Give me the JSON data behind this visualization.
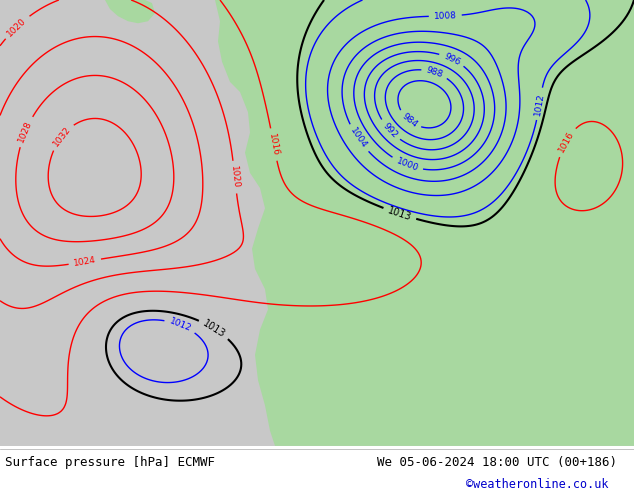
{
  "title_left": "Surface pressure [hPa] ECMWF",
  "title_right": "We 05-06-2024 18:00 UTC (00+186)",
  "copyright": "©weatheronline.co.uk",
  "sea_color": "#c8c8c8",
  "land_color": "#a8d8a0",
  "copyright_color": "#0000cc"
}
